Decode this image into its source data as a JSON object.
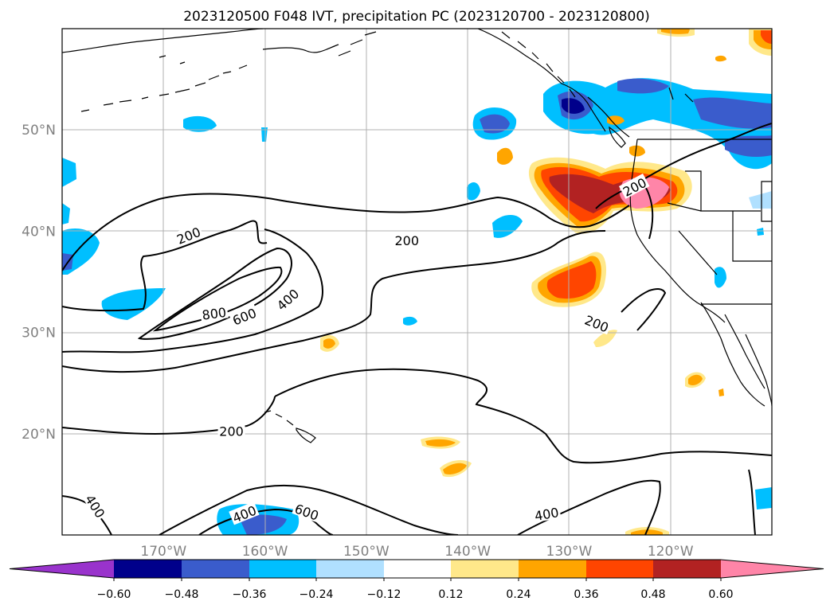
{
  "title": "2023120500 F048 IVT, precipitation PC (2023120700 - 2023120800)",
  "map": {
    "lon_range": [
      -180,
      -110
    ],
    "lat_range": [
      10,
      60
    ],
    "lon_labels": [
      {
        "lon": -170,
        "text": "170°W"
      },
      {
        "lon": -160,
        "text": "160°W"
      },
      {
        "lon": -150,
        "text": "150°W"
      },
      {
        "lon": -140,
        "text": "140°W"
      },
      {
        "lon": -130,
        "text": "130°W"
      },
      {
        "lon": -120,
        "text": "120°W"
      }
    ],
    "lat_labels": [
      {
        "lat": 50,
        "text": "50°N"
      },
      {
        "lat": 40,
        "text": "40°N"
      },
      {
        "lat": 30,
        "text": "30°N"
      },
      {
        "lat": 20,
        "text": "20°N"
      }
    ],
    "contour_labels": [
      {
        "text": "200",
        "lon": -167.5,
        "lat": 39.5,
        "rot": -22
      },
      {
        "text": "200",
        "lon": -146,
        "lat": 39.0,
        "rot": 0
      },
      {
        "text": "800",
        "lon": -165,
        "lat": 31.8,
        "rot": -8
      },
      {
        "text": "600",
        "lon": -162,
        "lat": 31.5,
        "rot": -22
      },
      {
        "text": "400",
        "lon": -157.7,
        "lat": 33.2,
        "rot": -42
      },
      {
        "text": "200",
        "lon": -127.3,
        "lat": 30.8,
        "rot": 22
      },
      {
        "text": "200",
        "lon": -123.5,
        "lat": 44.3,
        "rot": -28
      },
      {
        "text": "200",
        "lon": -163.3,
        "lat": 20.2,
        "rot": 0
      },
      {
        "text": "400",
        "lon": -176.8,
        "lat": 12.8,
        "rot": 58
      },
      {
        "text": "400",
        "lon": -162,
        "lat": 12.0,
        "rot": -22
      },
      {
        "text": "600",
        "lon": -155.9,
        "lat": 12.2,
        "rot": 20
      },
      {
        "text": "400",
        "lon": -132.2,
        "lat": 12.0,
        "rot": -10
      }
    ]
  },
  "colorbar": {
    "ticks": [
      "−0.60",
      "−0.48",
      "−0.36",
      "−0.24",
      "−0.12",
      "0.12",
      "0.24",
      "0.36",
      "0.48",
      "0.60"
    ],
    "colors": [
      "#9933cc",
      "#00008b",
      "#3a5ccc",
      "#00bfff",
      "#b0e0ff",
      "#ffffff",
      "#ffe88a",
      "#ffa500",
      "#ff4500",
      "#b22222",
      "#ff85a8"
    ]
  }
}
